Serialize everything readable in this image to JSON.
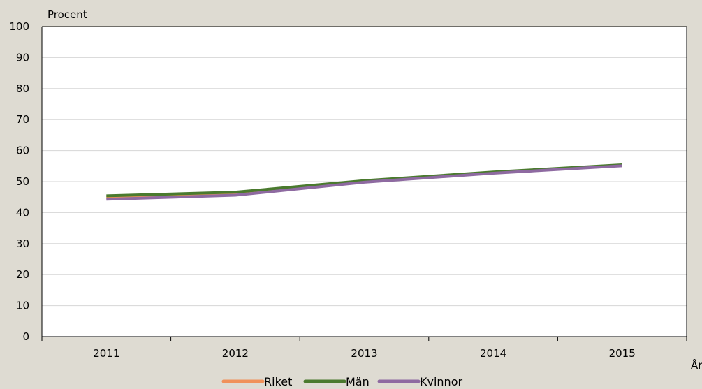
{
  "chart_data": {
    "type": "line",
    "ylabel": "Procent",
    "xlabel": "År",
    "categories": [
      "2011",
      "2012",
      "2013",
      "2014",
      "2015"
    ],
    "ylim": [
      0,
      100
    ],
    "yticks": [
      0,
      10,
      20,
      30,
      40,
      50,
      60,
      70,
      80,
      90,
      100
    ],
    "grid": true,
    "legend_position": "bottom",
    "series": [
      {
        "name": "Riket",
        "color": "#f0915a",
        "values": [
          44.8,
          46.0,
          50.0,
          52.9,
          55.2
        ]
      },
      {
        "name": "Män",
        "color": "#4a7a2e",
        "values": [
          45.4,
          46.6,
          50.3,
          53.1,
          55.4
        ]
      },
      {
        "name": "Kvinnor",
        "color": "#8e6aa1",
        "values": [
          44.3,
          45.6,
          49.8,
          52.7,
          55.1
        ]
      }
    ]
  }
}
